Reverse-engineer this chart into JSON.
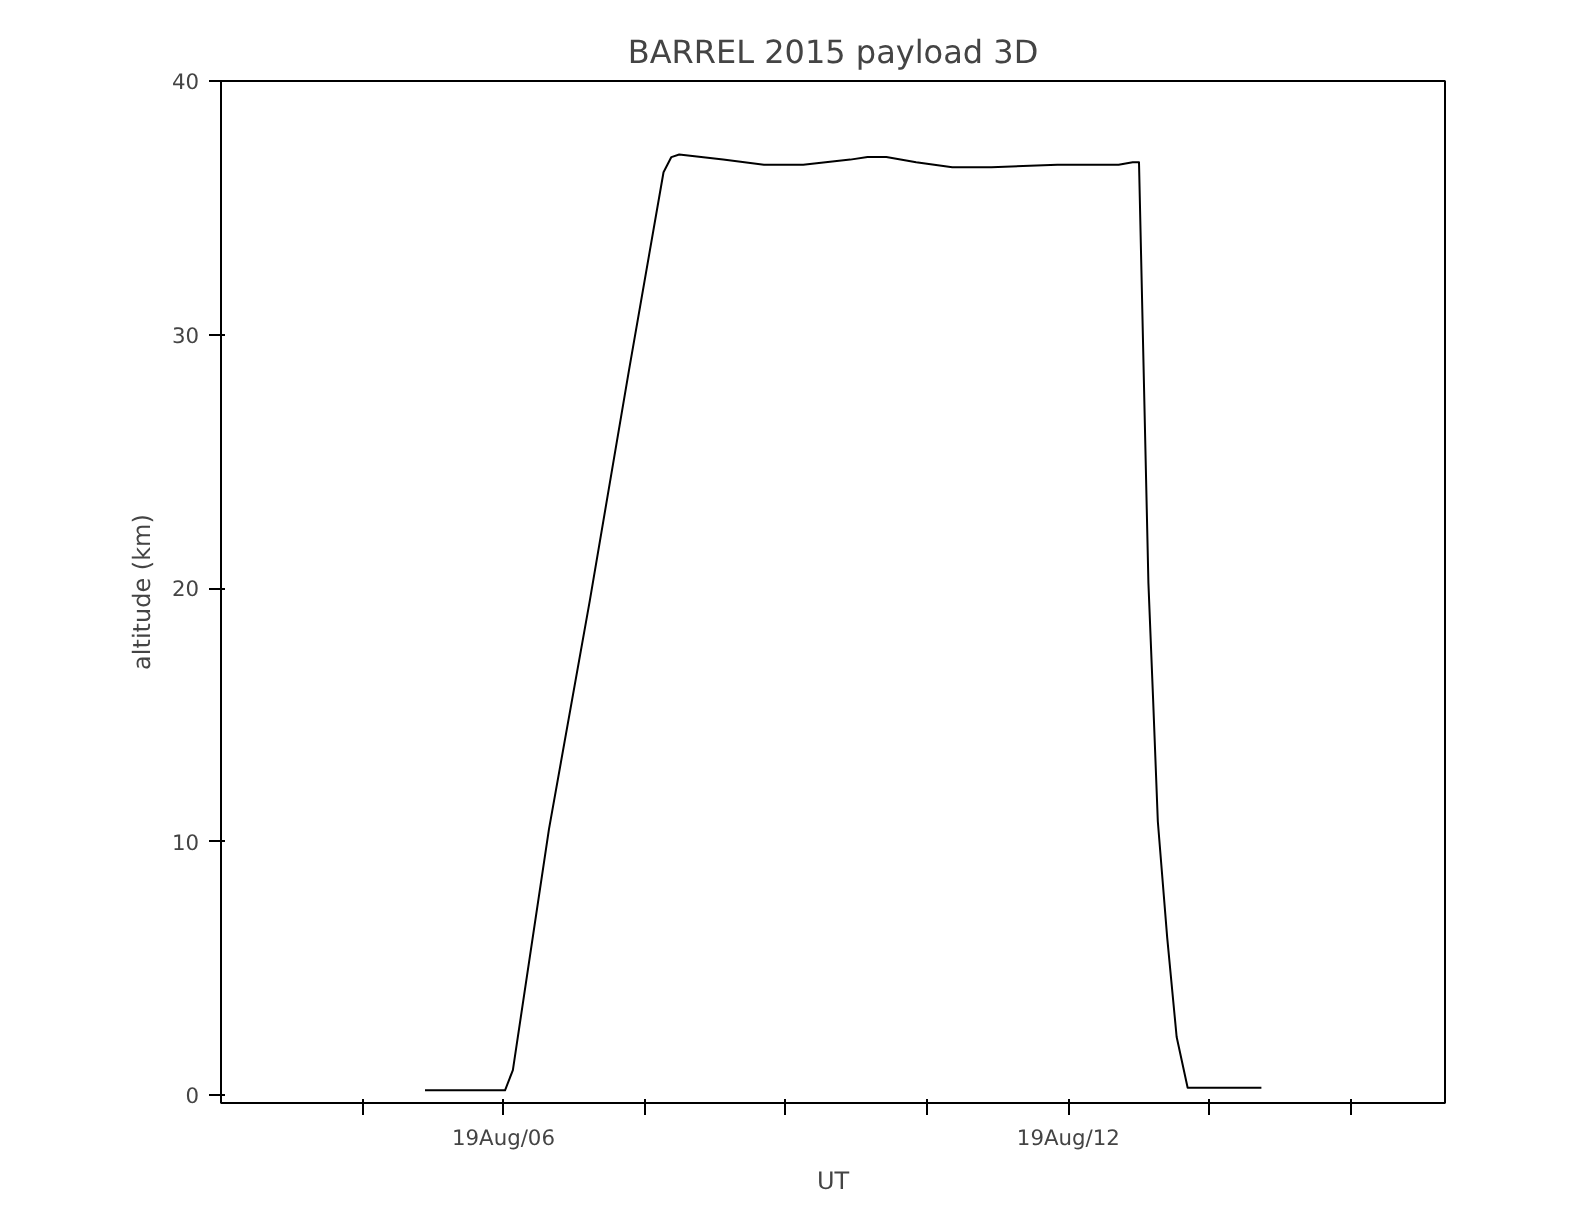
{
  "chart_data": {
    "type": "line",
    "title": "BARREL 2015 payload 3D",
    "xlabel": "UT",
    "ylabel": "altitude (km)",
    "xlim": [
      "2015-08-19T03:00",
      "2015-08-19T16:00"
    ],
    "ylim": [
      -0.3,
      40
    ],
    "xticks": [
      {
        "value": "2015-08-19T04:30",
        "label": null
      },
      {
        "value": "2015-08-19T06:00",
        "label": "19Aug/06"
      },
      {
        "value": "2015-08-19T07:30",
        "label": null
      },
      {
        "value": "2015-08-19T09:00",
        "label": null
      },
      {
        "value": "2015-08-19T10:30",
        "label": null
      },
      {
        "value": "2015-08-19T12:00",
        "label": "19Aug/12"
      },
      {
        "value": "2015-08-19T13:30",
        "label": null
      },
      {
        "value": "2015-08-19T15:00",
        "label": null
      }
    ],
    "yticks": [
      0,
      10,
      20,
      30,
      40
    ],
    "grid": false,
    "series": [
      {
        "color": "#000000",
        "x": [
          "2015-08-19T05:10",
          "2015-08-19T06:01",
          "2015-08-19T06:06",
          "2015-08-19T06:29",
          "2015-08-19T06:55",
          "2015-08-19T07:20",
          "2015-08-19T07:42",
          "2015-08-19T07:47",
          "2015-08-19T07:52",
          "2015-08-19T08:20",
          "2015-08-19T08:46",
          "2015-08-19T09:11",
          "2015-08-19T09:41",
          "2015-08-19T09:52",
          "2015-08-19T10:04",
          "2015-08-19T10:23",
          "2015-08-19T10:46",
          "2015-08-19T11:11",
          "2015-08-19T11:53",
          "2015-08-19T12:32",
          "2015-08-19T12:41",
          "2015-08-19T12:45",
          "2015-08-19T12:51",
          "2015-08-19T12:54",
          "2015-08-19T12:57",
          "2015-08-19T13:03",
          "2015-08-19T13:09",
          "2015-08-19T13:16",
          "2015-08-19T13:19",
          "2015-08-19T14:03"
        ],
        "values": [
          0.2,
          0.2,
          1.0,
          10.5,
          19.5,
          28.6,
          36.4,
          37.0,
          37.1,
          36.9,
          36.7,
          36.7,
          36.9,
          37.0,
          37.0,
          36.8,
          36.6,
          36.6,
          36.7,
          36.7,
          36.8,
          36.8,
          20.2,
          15.6,
          10.8,
          6.2,
          2.3,
          0.3,
          0.3,
          0.3
        ]
      }
    ]
  }
}
